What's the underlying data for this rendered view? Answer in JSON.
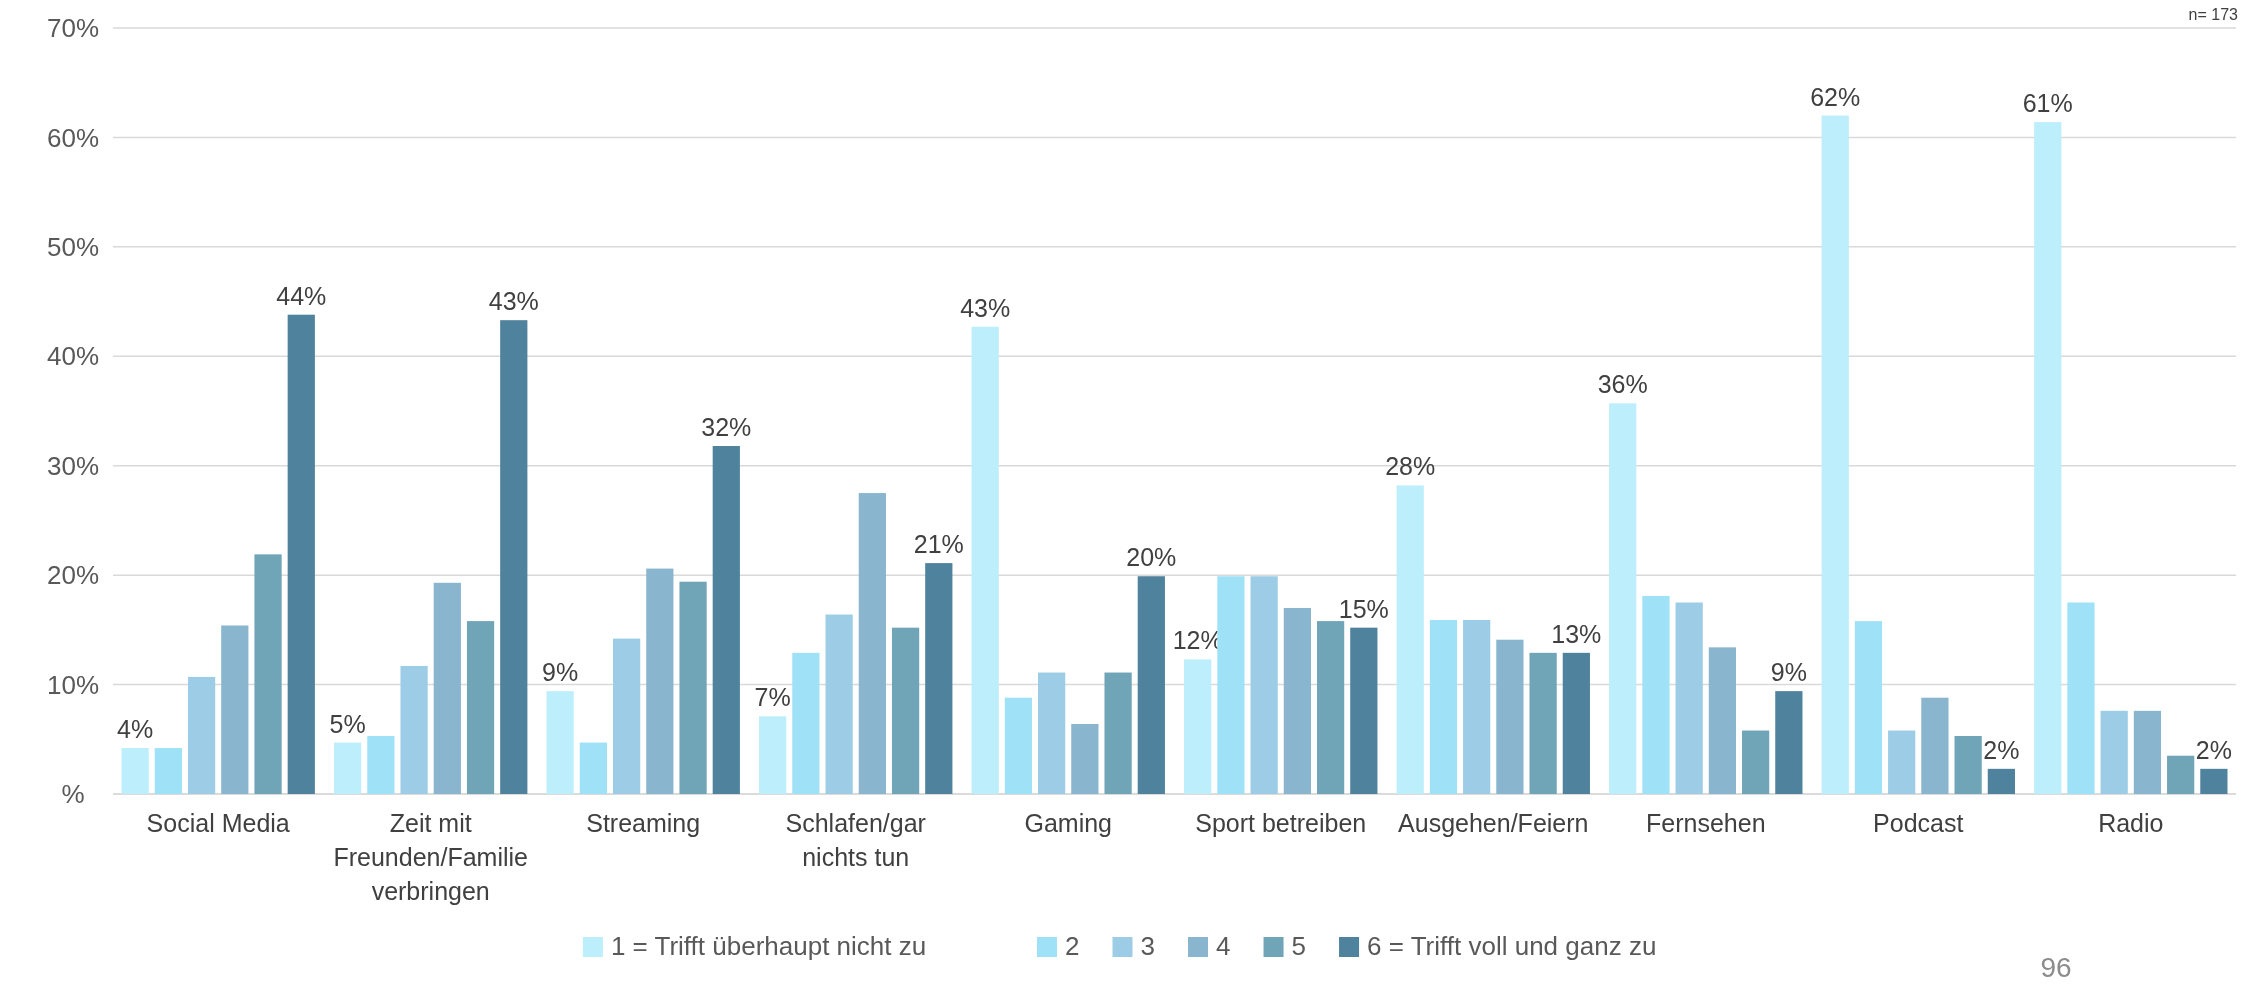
{
  "chart_data": {
    "type": "bar",
    "categories": [
      "Social Media",
      "Zeit mit Freunden/Familie verbringen",
      "Streaming",
      "Schlafen/gar nichts tun",
      "Gaming",
      "Sport betreiben",
      "Ausgehen/Feiern",
      "Fernsehen",
      "Podcast",
      "Radio"
    ],
    "series": [
      {
        "name": "1 = Trifft überhaupt nicht zu",
        "color": "#bdeefc",
        "values": [
          4.2,
          4.7,
          9.4,
          7.1,
          42.7,
          12.3,
          28.2,
          35.7,
          62.0,
          61.4
        ],
        "value_labels": [
          "4%",
          "5%",
          "9%",
          "7%",
          "43%",
          "12%",
          "28%",
          "36%",
          "62%",
          "61%"
        ]
      },
      {
        "name": "2",
        "color": "#9fe2f8",
        "values": [
          4.2,
          5.3,
          4.7,
          12.9,
          8.8,
          19.9,
          15.9,
          18.1,
          15.8,
          17.5
        ]
      },
      {
        "name": "3",
        "color": "#9dcde6",
        "values": [
          10.7,
          11.7,
          14.2,
          16.4,
          11.1,
          19.9,
          15.9,
          17.5,
          5.8,
          7.6
        ]
      },
      {
        "name": "4",
        "color": "#89b5cf",
        "values": [
          15.4,
          19.3,
          20.6,
          27.5,
          6.4,
          17.0,
          14.1,
          13.4,
          8.8,
          7.6
        ]
      },
      {
        "name": "5",
        "color": "#70a5b8",
        "values": [
          21.9,
          15.8,
          19.4,
          15.2,
          11.1,
          15.8,
          12.9,
          5.8,
          5.3,
          3.5
        ]
      },
      {
        "name": "6 = Trifft voll und ganz zu",
        "color": "#4f829c",
        "values": [
          43.8,
          43.3,
          31.8,
          21.1,
          19.9,
          15.2,
          12.9,
          9.4,
          2.3,
          2.3
        ],
        "value_labels": [
          "44%",
          "43%",
          "32%",
          "21%",
          "20%",
          "15%",
          "13%",
          "9%",
          "2%",
          "2%"
        ]
      }
    ],
    "ylim": [
      0,
      70
    ],
    "yticks": [
      {
        "value": 0,
        "label": "%"
      },
      {
        "value": 10,
        "label": "10%"
      },
      {
        "value": 20,
        "label": "20%"
      },
      {
        "value": 30,
        "label": "30%"
      },
      {
        "value": 40,
        "label": "40%"
      },
      {
        "value": 50,
        "label": "50%"
      },
      {
        "value": 60,
        "label": "60%"
      },
      {
        "value": 70,
        "label": "70%"
      }
    ],
    "grid": "y",
    "legend": "bottom",
    "annotations": [
      "n= 173",
      "96"
    ]
  }
}
